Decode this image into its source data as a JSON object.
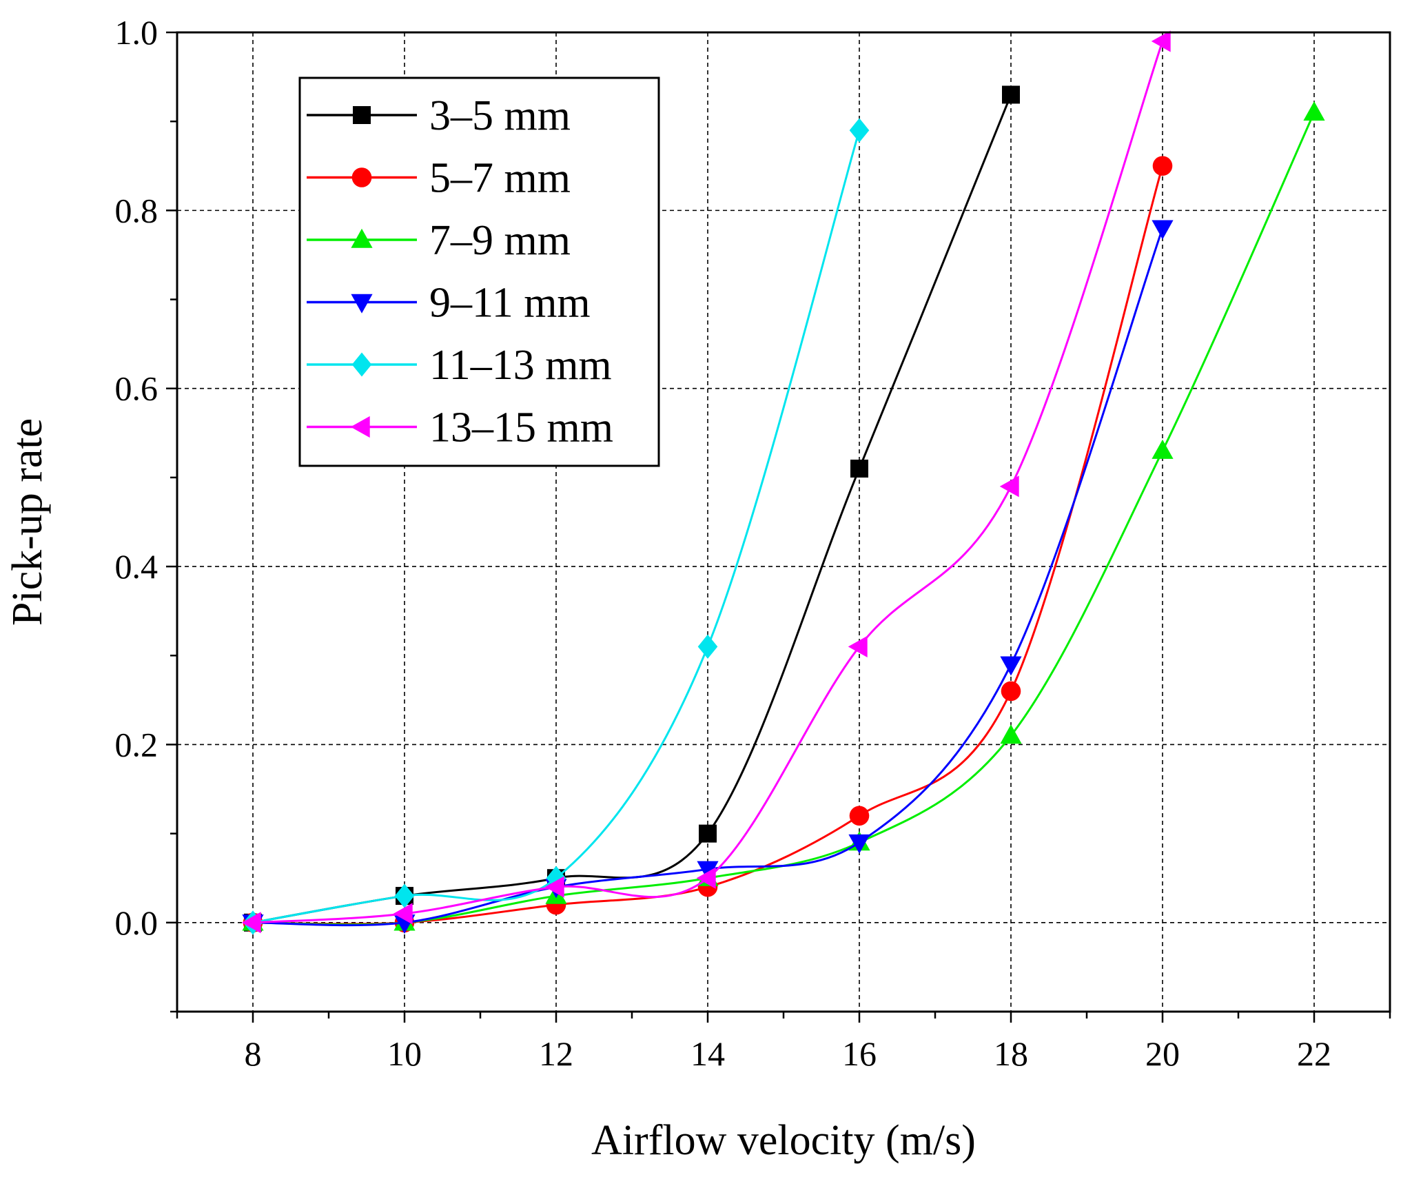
{
  "chart_data": {
    "type": "line",
    "title": "",
    "xlabel": "Airflow velocity (m/s)",
    "ylabel": "Pick-up rate",
    "xlim": [
      7,
      23
    ],
    "ylim": [
      -0.1,
      1.0
    ],
    "xticks": [
      8,
      10,
      12,
      14,
      16,
      18,
      20,
      22
    ],
    "xtick_labels": [
      "8",
      "10",
      "12",
      "14",
      "16",
      "18",
      "20",
      "22"
    ],
    "yticks": [
      0.0,
      0.2,
      0.4,
      0.6,
      0.8,
      1.0
    ],
    "ytick_labels": [
      "0.0",
      "0.2",
      "0.4",
      "0.6",
      "0.8",
      "1.0"
    ],
    "grid": true,
    "legend_position": "top-left",
    "series": [
      {
        "name": "3–5 mm",
        "color": "#000000",
        "marker": "square",
        "x": [
          8,
          10,
          12,
          14,
          16,
          18
        ],
        "y": [
          0.0,
          0.03,
          0.05,
          0.1,
          0.51,
          0.93
        ]
      },
      {
        "name": "5–7 mm",
        "color": "#ff0000",
        "marker": "circle",
        "x": [
          8,
          10,
          12,
          14,
          16,
          18,
          20
        ],
        "y": [
          0.0,
          0.0,
          0.02,
          0.04,
          0.12,
          0.26,
          0.85
        ]
      },
      {
        "name": "7–9 mm",
        "color": "#00ee00",
        "marker": "triangle-up",
        "x": [
          8,
          10,
          12,
          14,
          16,
          18,
          20,
          22
        ],
        "y": [
          0.0,
          0.0,
          0.03,
          0.05,
          0.09,
          0.21,
          0.53,
          0.91
        ]
      },
      {
        "name": "9–11 mm",
        "color": "#0000ff",
        "marker": "triangle-down",
        "x": [
          8,
          10,
          12,
          14,
          16,
          18,
          20
        ],
        "y": [
          0.0,
          0.0,
          0.04,
          0.06,
          0.09,
          0.29,
          0.78
        ]
      },
      {
        "name": "11–13 mm",
        "color": "#00e5ee",
        "marker": "diamond",
        "x": [
          8,
          10,
          12,
          14,
          16
        ],
        "y": [
          0.0,
          0.03,
          0.05,
          0.31,
          0.89
        ]
      },
      {
        "name": "13–15 mm",
        "color": "#ff00ff",
        "marker": "triangle-left",
        "x": [
          8,
          10,
          12,
          14,
          16,
          18,
          20
        ],
        "y": [
          0.0,
          0.01,
          0.04,
          0.05,
          0.31,
          0.49,
          0.99
        ]
      }
    ]
  }
}
